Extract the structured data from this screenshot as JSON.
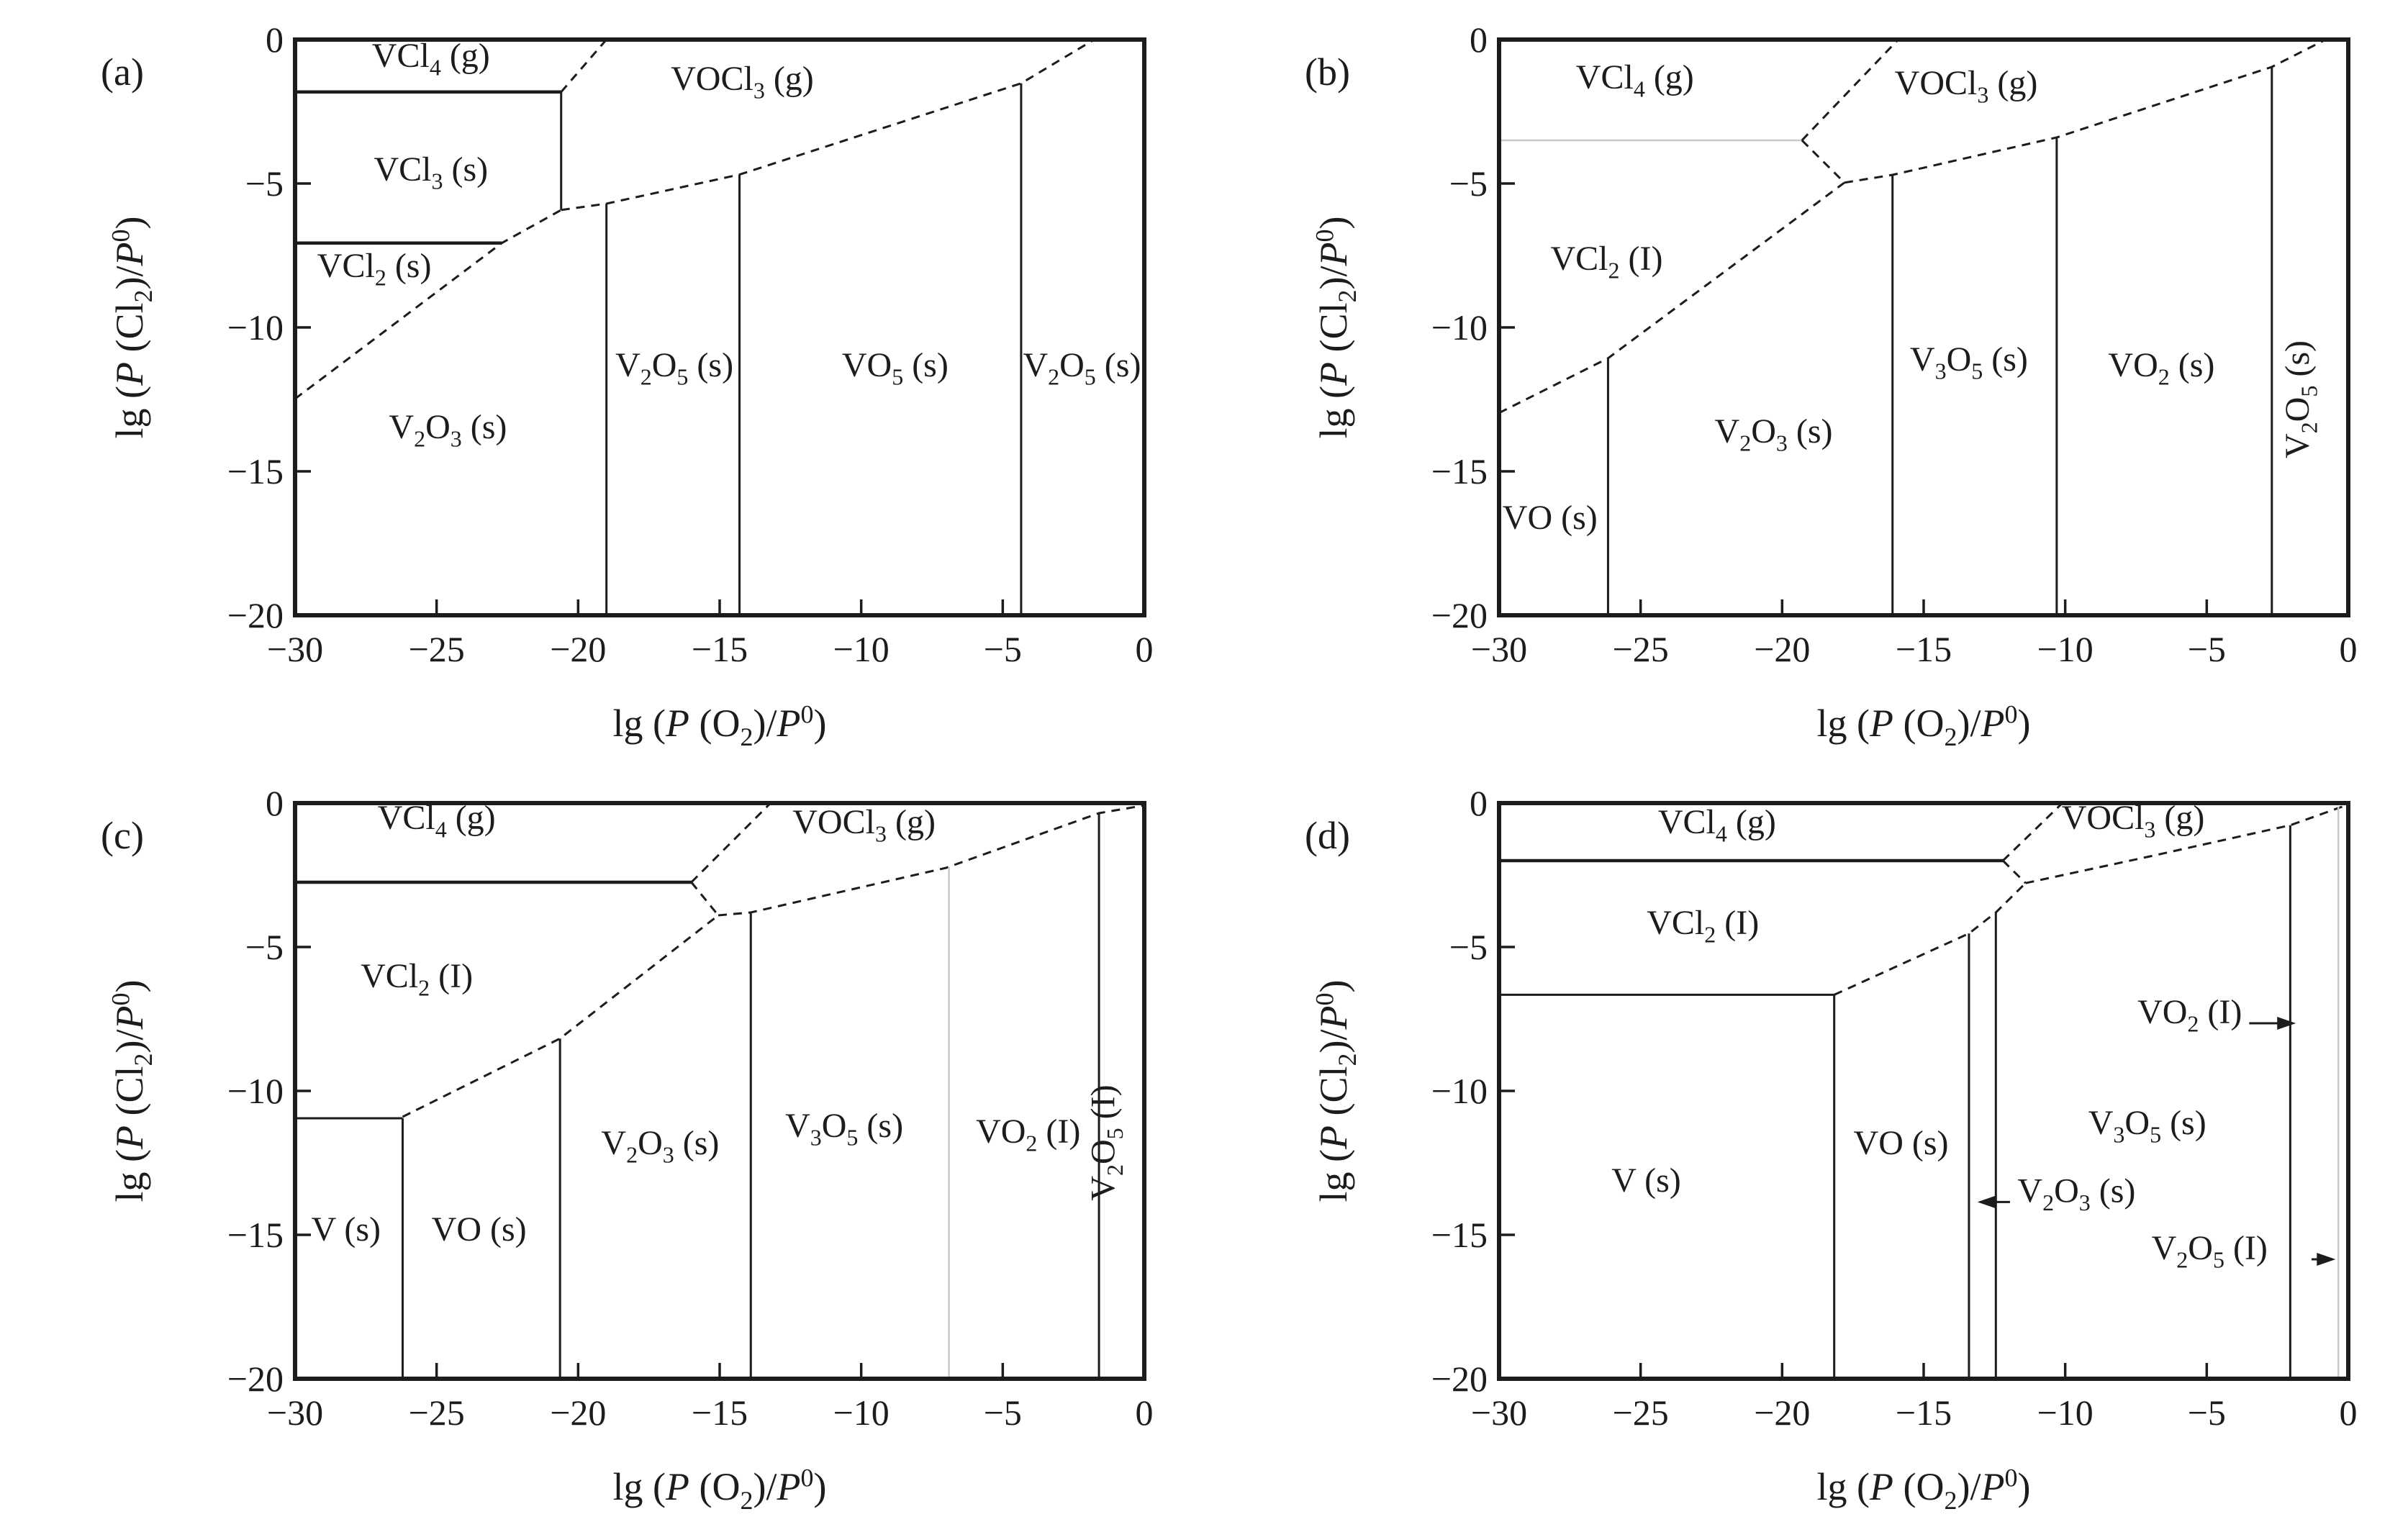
{
  "figure": {
    "background": "#ffffff",
    "ink": "#1c1c1c",
    "faint_line_color": "#c9c9c9",
    "xlabel": "lg (P (O2)/P0)",
    "ylabel": "lg (P (Cl2)/P0)",
    "xlim": [
      -30,
      0
    ],
    "ylim": [
      -20,
      0
    ],
    "x_ticks": [
      -30,
      -25,
      -20,
      -15,
      -10,
      -5,
      0
    ],
    "y_ticks": [
      0,
      -5,
      -10,
      -15,
      -20
    ]
  },
  "chart_data": [
    {
      "type": "phase-diagram",
      "panel_letter": "(a)",
      "xlabel": "lg (P (O2)/P0)",
      "ylabel": "lg (P (Cl2)/P0)",
      "xlim": [
        -30,
        0
      ],
      "ylim": [
        -20,
        0
      ],
      "x_ticks": [
        -30,
        -25,
        -20,
        -15,
        -10,
        -5,
        0
      ],
      "y_ticks": [
        0,
        -5,
        -10,
        -15,
        -20
      ],
      "regions": [
        {
          "label": "VCl4 (g)",
          "x": -25.2,
          "y": -0.95
        },
        {
          "label": "VOCl3 (g)",
          "x": -14.2,
          "y": -1.75
        },
        {
          "label": "VCl3 (s)",
          "x": -25.2,
          "y": -4.9
        },
        {
          "label": "VCl2 (s)",
          "x": -27.2,
          "y": -8.25
        },
        {
          "label": "V2O3 (s)",
          "x": -24.6,
          "y": -13.85
        },
        {
          "label": "V2O5 (s)",
          "x": -16.6,
          "y": -11.7
        },
        {
          "label": "VO5 (s)",
          "x": -8.8,
          "y": -11.7
        },
        {
          "label": "V2O5 (s)",
          "x": -2.2,
          "y": -11.7
        }
      ],
      "boundaries": [
        {
          "style": "solid",
          "points": [
            [
              -30,
              -1.82
            ],
            [
              -20.6,
              -1.82
            ]
          ]
        },
        {
          "style": "dashed",
          "points": [
            [
              -20.6,
              -1.82
            ],
            [
              -19.0,
              0
            ]
          ]
        },
        {
          "style": "thin",
          "points": [
            [
              -20.6,
              -1.82
            ],
            [
              -20.6,
              -5.92
            ]
          ]
        },
        {
          "style": "solid",
          "points": [
            [
              -30,
              -7.07
            ],
            [
              -22.7,
              -7.07
            ]
          ]
        },
        {
          "style": "dashed",
          "points": [
            [
              -30,
              -12.48
            ],
            [
              -22.7,
              -7.07
            ],
            [
              -20.6,
              -5.92
            ]
          ]
        },
        {
          "style": "dashed",
          "points": [
            [
              -20.6,
              -5.92
            ],
            [
              -19.0,
              -5.7
            ],
            [
              -14.3,
              -4.69
            ],
            [
              -4.35,
              -1.52
            ],
            [
              -1.77,
              0
            ]
          ]
        },
        {
          "style": "thin",
          "points": [
            [
              -19.0,
              -5.7
            ],
            [
              -19.0,
              -20
            ]
          ]
        },
        {
          "style": "thin",
          "points": [
            [
              -14.3,
              -4.69
            ],
            [
              -14.3,
              -20
            ]
          ]
        },
        {
          "style": "thin",
          "points": [
            [
              -4.35,
              -1.52
            ],
            [
              -4.35,
              -20
            ]
          ]
        }
      ],
      "arrows": []
    },
    {
      "type": "phase-diagram",
      "panel_letter": "(b)",
      "xlabel": "lg (P (O2)/P0)",
      "ylabel": "lg (P (Cl2)/P0)",
      "xlim": [
        -30,
        0
      ],
      "ylim": [
        -20,
        0
      ],
      "x_ticks": [
        -30,
        -25,
        -20,
        -15,
        -10,
        -5,
        0
      ],
      "y_ticks": [
        0,
        -5,
        -10,
        -15,
        -20
      ],
      "regions": [
        {
          "label": "VCl4 (g)",
          "x": -25.2,
          "y": -1.7
        },
        {
          "label": "VOCl3 (g)",
          "x": -13.5,
          "y": -1.9
        },
        {
          "label": "VCl2 (I)",
          "x": -26.2,
          "y": -8.0
        },
        {
          "label": "VO (s)",
          "x": -28.2,
          "y": -17.0
        },
        {
          "label": "V2O3 (s)",
          "x": -20.3,
          "y": -14.0
        },
        {
          "label": "V3O5 (s)",
          "x": -13.4,
          "y": -11.5
        },
        {
          "label": "VO2 (s)",
          "x": -6.6,
          "y": -11.7
        },
        {
          "label": "V2O5 (s)",
          "x": -1.4,
          "y": -12.5,
          "rotate": true
        }
      ],
      "boundaries": [
        {
          "style": "faint",
          "points": [
            [
              -30,
              -3.5
            ],
            [
              -19.3,
              -3.5
            ]
          ]
        },
        {
          "style": "dashed",
          "points": [
            [
              -19.3,
              -3.5
            ],
            [
              -15.9,
              0
            ]
          ]
        },
        {
          "style": "dashed",
          "points": [
            [
              -19.3,
              -3.5
            ],
            [
              -17.8,
              -4.97
            ]
          ]
        },
        {
          "style": "dashed",
          "points": [
            [
              -17.8,
              -4.97
            ],
            [
              -16.1,
              -4.7
            ],
            [
              -10.3,
              -3.4
            ],
            [
              -2.7,
              -0.95
            ],
            [
              -0.8,
              0
            ]
          ]
        },
        {
          "style": "dashed",
          "points": [
            [
              -30,
              -12.97
            ],
            [
              -26.15,
              -11.07
            ],
            [
              -17.8,
              -4.97
            ]
          ]
        },
        {
          "style": "thin",
          "points": [
            [
              -26.15,
              -11.07
            ],
            [
              -26.15,
              -20
            ]
          ]
        },
        {
          "style": "thin",
          "points": [
            [
              -16.1,
              -4.7
            ],
            [
              -16.1,
              -20
            ]
          ]
        },
        {
          "style": "thin",
          "points": [
            [
              -10.3,
              -3.4
            ],
            [
              -10.3,
              -20
            ]
          ]
        },
        {
          "style": "thin",
          "points": [
            [
              -2.7,
              -0.95
            ],
            [
              -2.7,
              -20
            ]
          ]
        }
      ],
      "arrows": []
    },
    {
      "type": "phase-diagram",
      "panel_letter": "(c)",
      "xlabel": "lg (P (O2)/P0)",
      "ylabel": "lg (P (Cl2)/P0)",
      "xlim": [
        -30,
        0
      ],
      "ylim": [
        -20,
        0
      ],
      "x_ticks": [
        -30,
        -25,
        -20,
        -15,
        -10,
        -5,
        0
      ],
      "y_ticks": [
        0,
        -5,
        -10,
        -15,
        -20
      ],
      "regions": [
        {
          "label": "VCl4 (g)",
          "x": -25.0,
          "y": -0.9
        },
        {
          "label": "VOCl3 (g)",
          "x": -9.9,
          "y": -1.05
        },
        {
          "label": "VCl2 (I)",
          "x": -25.7,
          "y": -6.4
        },
        {
          "label": "V (s)",
          "x": -28.2,
          "y": -15.2
        },
        {
          "label": "VO (s)",
          "x": -23.5,
          "y": -15.2
        },
        {
          "label": "V2O3 (s)",
          "x": -17.1,
          "y": -12.2
        },
        {
          "label": "V3O5 (s)",
          "x": -10.6,
          "y": -11.6
        },
        {
          "label": "VO2 (I)",
          "x": -4.1,
          "y": -11.8
        },
        {
          "label": "V2O5 (I)",
          "x": -1.05,
          "y": -11.8,
          "rotate": true
        }
      ],
      "boundaries": [
        {
          "style": "solid",
          "points": [
            [
              -30,
              -2.75
            ],
            [
              -16.0,
              -2.75
            ]
          ]
        },
        {
          "style": "dashed",
          "points": [
            [
              -16.0,
              -2.75
            ],
            [
              -13.2,
              0
            ]
          ]
        },
        {
          "style": "dashed",
          "points": [
            [
              -16.0,
              -2.75
            ],
            [
              -15.05,
              -3.9
            ]
          ]
        },
        {
          "style": "dashed",
          "points": [
            [
              -15.05,
              -3.9
            ],
            [
              -13.9,
              -3.8
            ],
            [
              -7.0,
              -2.25
            ],
            [
              -1.6,
              -0.35
            ],
            [
              0,
              -0.08
            ]
          ]
        },
        {
          "style": "dashed",
          "points": [
            [
              -26.2,
              -10.9
            ],
            [
              -20.64,
              -8.18
            ],
            [
              -15.05,
              -3.9
            ]
          ]
        },
        {
          "style": "thin",
          "points": [
            [
              -30,
              -10.95
            ],
            [
              -26.2,
              -10.95
            ]
          ]
        },
        {
          "style": "thin",
          "points": [
            [
              -26.2,
              -10.95
            ],
            [
              -26.2,
              -20
            ]
          ]
        },
        {
          "style": "thin",
          "points": [
            [
              -20.64,
              -8.18
            ],
            [
              -20.64,
              -20
            ]
          ]
        },
        {
          "style": "thin",
          "points": [
            [
              -13.9,
              -3.8
            ],
            [
              -13.9,
              -20
            ]
          ]
        },
        {
          "style": "faint",
          "points": [
            [
              -6.9,
              -2.22
            ],
            [
              -6.9,
              -20
            ]
          ]
        },
        {
          "style": "thin",
          "points": [
            [
              -1.6,
              -0.35
            ],
            [
              -1.6,
              -20
            ]
          ]
        }
      ],
      "arrows": []
    },
    {
      "type": "phase-diagram",
      "panel_letter": "(d)",
      "xlabel": "lg (P (O2)/P0)",
      "ylabel": "lg (P (Cl2)/P0)",
      "xlim": [
        -30,
        0
      ],
      "ylim": [
        -20,
        0
      ],
      "x_ticks": [
        -30,
        -25,
        -20,
        -15,
        -10,
        -5,
        0
      ],
      "y_ticks": [
        0,
        -5,
        -10,
        -15,
        -20
      ],
      "regions": [
        {
          "label": "VCl4 (g)",
          "x": -22.3,
          "y": -1.05
        },
        {
          "label": "VOCl3 (g)",
          "x": -7.6,
          "y": -0.9
        },
        {
          "label": "VCl2 (I)",
          "x": -22.8,
          "y": -4.55
        },
        {
          "label": "V (s)",
          "x": -24.8,
          "y": -13.5
        },
        {
          "label": "VO (s)",
          "x": -15.8,
          "y": -12.2
        },
        {
          "label": "V2O3 (s)",
          "x": -9.6,
          "y": -13.86
        },
        {
          "label": "V3O5 (s)",
          "x": -7.1,
          "y": -11.5
        },
        {
          "label": "VO2 (I)",
          "x": -5.6,
          "y": -7.65
        },
        {
          "label": "V2O5 (I)",
          "x": -4.9,
          "y": -15.85
        }
      ],
      "boundaries": [
        {
          "style": "solid",
          "points": [
            [
              -30,
              -2.0
            ],
            [
              -12.2,
              -2.0
            ]
          ]
        },
        {
          "style": "dashed",
          "points": [
            [
              -12.2,
              -2.0
            ],
            [
              -10.1,
              0
            ]
          ]
        },
        {
          "style": "dashed",
          "points": [
            [
              -12.2,
              -2.0
            ],
            [
              -11.4,
              -2.78
            ]
          ]
        },
        {
          "style": "dashed",
          "points": [
            [
              -11.4,
              -2.78
            ],
            [
              -7.0,
              -1.85
            ],
            [
              -2.05,
              -0.77
            ],
            [
              0,
              -0.05
            ]
          ]
        },
        {
          "style": "dashed",
          "points": [
            [
              -18.16,
              -6.66
            ],
            [
              -13.4,
              -4.53
            ],
            [
              -12.45,
              -3.8
            ],
            [
              -11.4,
              -2.78
            ]
          ]
        },
        {
          "style": "thin",
          "points": [
            [
              -30,
              -6.66
            ],
            [
              -18.16,
              -6.66
            ]
          ]
        },
        {
          "style": "thin",
          "points": [
            [
              -18.16,
              -6.66
            ],
            [
              -18.16,
              -20
            ]
          ]
        },
        {
          "style": "thin",
          "points": [
            [
              -13.4,
              -4.53
            ],
            [
              -13.4,
              -20
            ]
          ]
        },
        {
          "style": "thin",
          "points": [
            [
              -12.45,
              -3.8
            ],
            [
              -12.45,
              -20
            ]
          ]
        },
        {
          "style": "thin",
          "points": [
            [
              -2.05,
              -0.77
            ],
            [
              -2.05,
              -20
            ]
          ]
        },
        {
          "style": "faint",
          "points": [
            [
              -0.35,
              -0.12
            ],
            [
              -0.35,
              -20
            ]
          ]
        }
      ],
      "arrows": [
        {
          "x1": -11.95,
          "y1": -13.86,
          "x2": -13.1,
          "y2": -13.86
        },
        {
          "x1": -3.5,
          "y1": -7.65,
          "x2": -1.85,
          "y2": -7.65
        },
        {
          "x1": -1.3,
          "y1": -15.85,
          "x2": -0.45,
          "y2": -15.85
        }
      ]
    }
  ]
}
